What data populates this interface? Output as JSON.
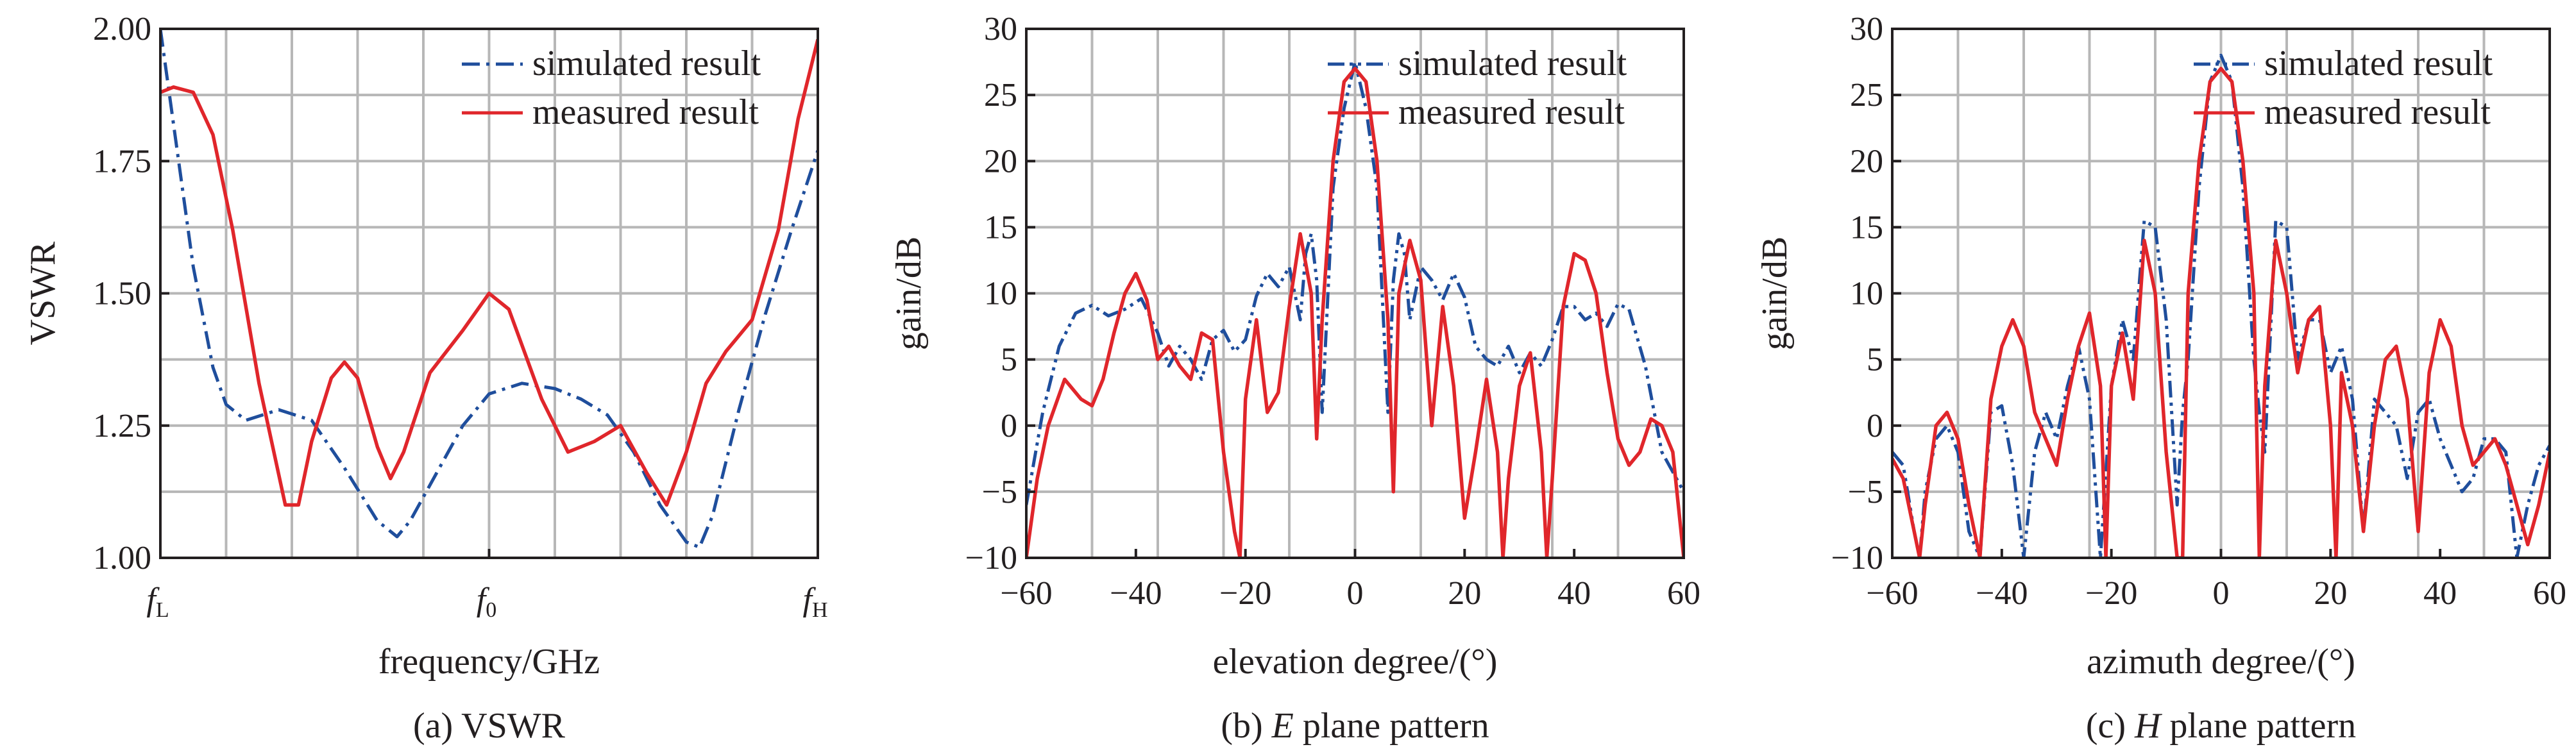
{
  "colors": {
    "simulated": "#1f4e9c",
    "measured": "#e0262b",
    "grid": "#b7b7b7",
    "axis": "#231f20"
  },
  "chart_data": [
    {
      "type": "line",
      "caption": "(a) VSWR",
      "xlabel": "frequency/GHz",
      "ylabel": "VSWR",
      "x_ticks": [
        "fL",
        "f0",
        "fH"
      ],
      "x_tick_main": [
        "f",
        "f",
        "f"
      ],
      "x_tick_sub": [
        "L",
        "0",
        "H"
      ],
      "xlim": [
        0,
        10
      ],
      "ylim": [
        1.0,
        2.0
      ],
      "y_ticks": [
        "1.00",
        "1.25",
        "1.50",
        "1.75",
        "2.00"
      ],
      "grid": true,
      "legend_position": "top-right",
      "series": [
        {
          "name": "simulated result",
          "style": "dash-dot",
          "x": [
            0,
            0.2,
            0.5,
            0.8,
            1.0,
            1.3,
            1.8,
            2.3,
            2.8,
            3.3,
            3.6,
            3.8,
            4.2,
            4.6,
            5.0,
            5.5,
            6.0,
            6.4,
            6.8,
            7.2,
            7.6,
            8.0,
            8.2,
            8.4,
            8.8,
            9.2,
            9.6,
            10.0
          ],
          "y": [
            2.0,
            1.82,
            1.55,
            1.36,
            1.29,
            1.26,
            1.28,
            1.26,
            1.17,
            1.07,
            1.04,
            1.07,
            1.16,
            1.25,
            1.31,
            1.33,
            1.32,
            1.3,
            1.27,
            1.2,
            1.1,
            1.03,
            1.02,
            1.08,
            1.28,
            1.46,
            1.62,
            1.77
          ]
        },
        {
          "name": "measured result",
          "style": "solid",
          "x": [
            0,
            0.2,
            0.5,
            0.8,
            1.1,
            1.5,
            1.9,
            2.1,
            2.3,
            2.6,
            2.8,
            3.0,
            3.3,
            3.5,
            3.7,
            4.1,
            4.6,
            5.0,
            5.3,
            5.8,
            6.2,
            6.6,
            7.0,
            7.4,
            7.7,
            8.0,
            8.3,
            8.6,
            9.0,
            9.4,
            9.7,
            10.0
          ],
          "y": [
            1.88,
            1.89,
            1.88,
            1.8,
            1.62,
            1.33,
            1.1,
            1.1,
            1.22,
            1.34,
            1.37,
            1.34,
            1.21,
            1.15,
            1.2,
            1.35,
            1.43,
            1.5,
            1.47,
            1.3,
            1.2,
            1.22,
            1.25,
            1.16,
            1.1,
            1.2,
            1.33,
            1.39,
            1.45,
            1.62,
            1.83,
            1.98
          ]
        }
      ]
    },
    {
      "type": "line",
      "caption_prefix": "(b) ",
      "caption_italic": "E",
      "caption_suffix": " plane pattern",
      "xlabel": "elevation degree/(°)",
      "ylabel": "gain/dB",
      "xlim": [
        -60,
        60
      ],
      "ylim": [
        -10,
        30
      ],
      "x_ticks": [
        "−60",
        "−40",
        "−20",
        "0",
        "20",
        "40",
        "60"
      ],
      "y_ticks": [
        "−10",
        "−5",
        "0",
        "5",
        "10",
        "15",
        "20",
        "25",
        "30"
      ],
      "grid": true,
      "legend_position": "top-right",
      "series": [
        {
          "name": "simulated result",
          "style": "dash-dot-dot",
          "x": [
            -60,
            -57,
            -54,
            -51,
            -48,
            -45,
            -42,
            -39,
            -36,
            -34,
            -32,
            -30,
            -28,
            -26,
            -24,
            -22,
            -20,
            -18,
            -16,
            -14,
            -12,
            -10,
            -9,
            -8,
            -7,
            -6,
            -4,
            -2,
            0,
            2,
            4,
            6,
            7,
            8,
            9,
            10,
            12,
            14,
            16,
            18,
            20,
            22,
            24,
            26,
            28,
            30,
            32,
            34,
            36,
            38,
            40,
            42,
            44,
            46,
            48,
            50,
            53,
            56,
            60
          ],
          "y": [
            -6,
            1,
            6,
            8.5,
            9.1,
            8.3,
            8.8,
            9.6,
            7,
            4.5,
            6,
            5,
            3.5,
            6.5,
            7.2,
            5.6,
            6.5,
            9.8,
            11.5,
            10.5,
            12,
            8,
            13,
            14.5,
            11,
            1,
            18,
            24,
            27.5,
            24,
            18,
            1,
            11,
            14.5,
            13,
            8,
            12,
            11,
            9.5,
            11.5,
            9.7,
            6,
            5,
            4.5,
            6,
            4,
            5.5,
            4.5,
            6.5,
            9,
            9,
            8,
            8.5,
            7.5,
            9.2,
            8.8,
            4.5,
            -2,
            -5
          ]
        },
        {
          "name": "measured result",
          "style": "solid",
          "x": [
            -60,
            -58,
            -56,
            -53,
            -50,
            -48,
            -46,
            -44,
            -42,
            -40,
            -38,
            -36,
            -34,
            -32,
            -30,
            -28,
            -26,
            -24,
            -22,
            -21,
            -20,
            -18,
            -16,
            -14,
            -12,
            -10,
            -8,
            -7,
            -6,
            -4,
            -2,
            0,
            2,
            4,
            6,
            7,
            8,
            10,
            12,
            14,
            16,
            18,
            20,
            22,
            24,
            26,
            27,
            28,
            30,
            32,
            34,
            35,
            36,
            38,
            40,
            42,
            44,
            46,
            48,
            50,
            52,
            54,
            56,
            58,
            60
          ],
          "y": [
            -10,
            -4,
            0,
            3.5,
            2,
            1.5,
            3.5,
            7,
            10,
            11.5,
            9.5,
            5,
            6,
            4.5,
            3.5,
            7,
            6.5,
            -2,
            -8,
            -10,
            2,
            8,
            1,
            2.5,
            9,
            14.5,
            10,
            -1,
            8,
            20,
            26,
            27,
            26,
            20,
            8,
            -5,
            10,
            14,
            11,
            0,
            9,
            3,
            -7,
            -2,
            3.5,
            -2,
            -10,
            -4,
            3,
            5.5,
            -2,
            -10,
            -4,
            9,
            13,
            12.5,
            10,
            4,
            -1,
            -3,
            -2,
            0.5,
            0,
            -2,
            -10
          ]
        }
      ]
    },
    {
      "type": "line",
      "caption_prefix": "(c) ",
      "caption_italic": "H",
      "caption_suffix": " plane pattern",
      "xlabel": "azimuth degree/(°)",
      "ylabel": "gain/dB",
      "xlim": [
        -60,
        60
      ],
      "ylim": [
        -10,
        30
      ],
      "x_ticks": [
        "−60",
        "−40",
        "−20",
        "0",
        "20",
        "40",
        "60"
      ],
      "y_ticks": [
        "−10",
        "−5",
        "0",
        "5",
        "10",
        "15",
        "20",
        "25",
        "30"
      ],
      "grid": true,
      "legend_position": "top-right",
      "series": [
        {
          "name": "simulated result",
          "style": "dash-dot-dot",
          "x": [
            -60,
            -58,
            -56,
            -55,
            -54,
            -52,
            -50,
            -48,
            -46,
            -44,
            -42,
            -40,
            -38,
            -36,
            -34,
            -32,
            -30,
            -28,
            -26,
            -24,
            -22,
            -20,
            -18,
            -16,
            -14,
            -12,
            -10,
            -8,
            -7,
            -6,
            -4,
            -2,
            0,
            2,
            4,
            6,
            7,
            8,
            10,
            12,
            14,
            16,
            18,
            20,
            22,
            24,
            26,
            28,
            30,
            32,
            34,
            36,
            38,
            40,
            42,
            44,
            46,
            48,
            50,
            52,
            54,
            56,
            58,
            60
          ],
          "y": [
            -2,
            -3,
            -8,
            -10,
            -5,
            -1,
            0,
            -2,
            -8,
            -10,
            1,
            1.5,
            -3,
            -10,
            -2,
            1,
            -1,
            3,
            6,
            2,
            -10,
            3,
            8,
            5,
            15.5,
            15,
            8,
            -6,
            1,
            5,
            18,
            26,
            28,
            26,
            18,
            5,
            1,
            -2,
            15.5,
            15,
            5,
            8,
            8,
            4,
            6,
            2,
            -8,
            2,
            1,
            0,
            -4,
            1,
            2,
            -1,
            -3,
            -5,
            -4,
            -1,
            -1,
            -2,
            -10,
            -6,
            -3,
            -1.5
          ]
        },
        {
          "name": "measured result",
          "style": "solid",
          "x": [
            -60,
            -58,
            -56,
            -55,
            -54,
            -52,
            -50,
            -48,
            -46,
            -44,
            -42,
            -40,
            -38,
            -36,
            -34,
            -32,
            -30,
            -28,
            -26,
            -24,
            -22,
            -21,
            -20,
            -18,
            -16,
            -14,
            -12,
            -10,
            -8,
            -7,
            -6,
            -4,
            -2,
            0,
            2,
            4,
            6,
            7,
            8,
            10,
            12,
            14,
            16,
            18,
            20,
            21,
            22,
            24,
            26,
            28,
            30,
            32,
            34,
            36,
            38,
            40,
            42,
            44,
            46,
            48,
            50,
            52,
            54,
            56,
            58,
            60
          ],
          "y": [
            -2.5,
            -4,
            -8,
            -10,
            -6,
            0,
            1,
            -1,
            -6,
            -10,
            2,
            6,
            8,
            6,
            1,
            -1,
            -3,
            2,
            6,
            8.5,
            3,
            -10,
            3,
            7,
            2,
            14,
            10,
            -2,
            -10,
            -10,
            10,
            20,
            26,
            27,
            26,
            20,
            10,
            -10,
            3,
            14,
            10,
            4,
            8,
            9,
            0,
            -10,
            4,
            0,
            -8,
            0,
            5,
            6,
            2,
            -8,
            4,
            8,
            6,
            0,
            -3,
            -2,
            -1,
            -3,
            -6,
            -9,
            -6,
            -2
          ]
        }
      ]
    }
  ]
}
